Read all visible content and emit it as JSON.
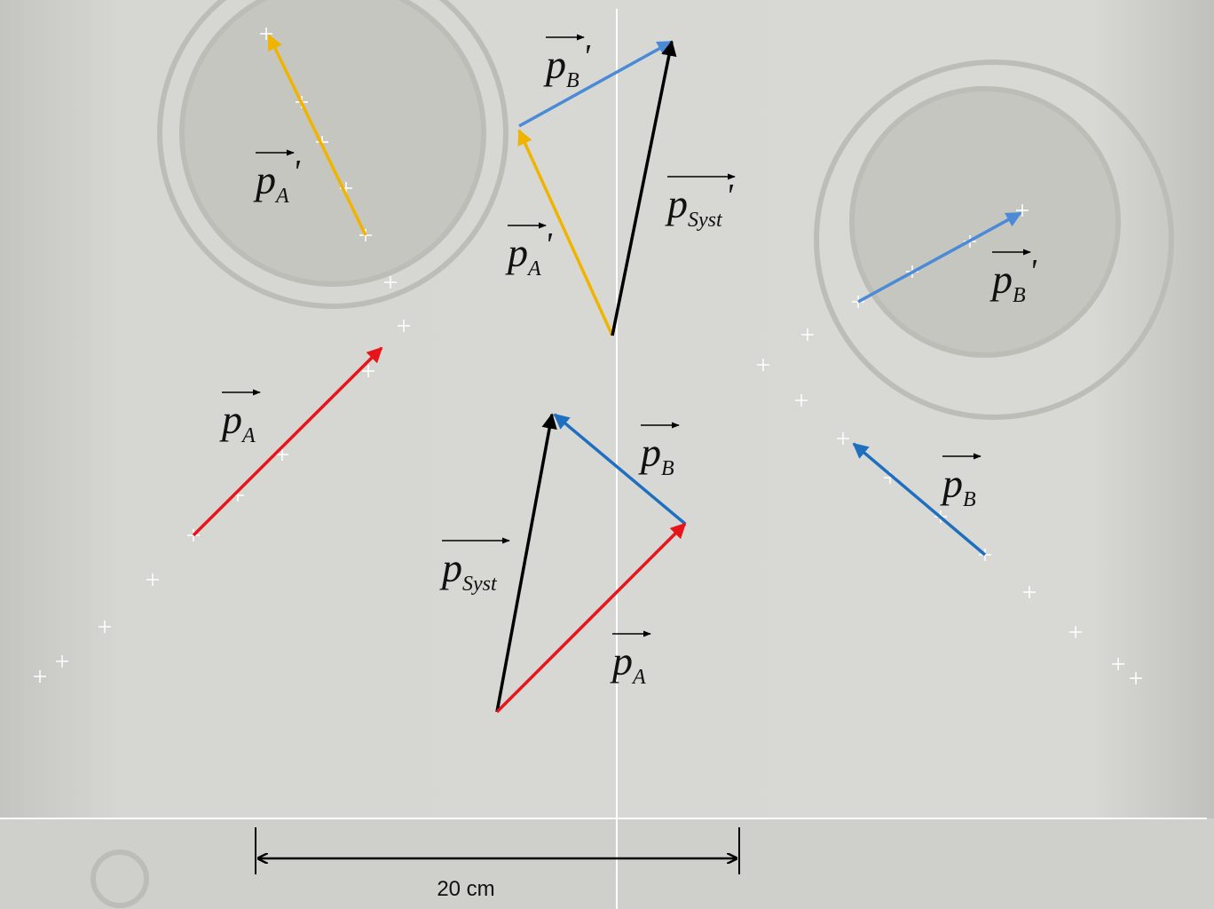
{
  "labels": [
    {
      "base": "p",
      "sub": "A",
      "prime": "'"
    },
    {
      "base": "p",
      "sub": "B",
      "prime": "'"
    },
    {
      "base": "p",
      "sub": "Syst",
      "prime": "'"
    },
    {
      "base": "p",
      "sub": "A",
      "prime": "'"
    },
    {
      "base": "p",
      "sub": "B",
      "prime": "'"
    },
    {
      "base": "p",
      "sub": "A"
    },
    {
      "base": "p",
      "sub": "B"
    },
    {
      "base": "p",
      "sub": "Syst"
    },
    {
      "base": "p",
      "sub": "A"
    },
    {
      "base": "p",
      "sub": "B"
    }
  ],
  "scale_label": "20 cm"
}
